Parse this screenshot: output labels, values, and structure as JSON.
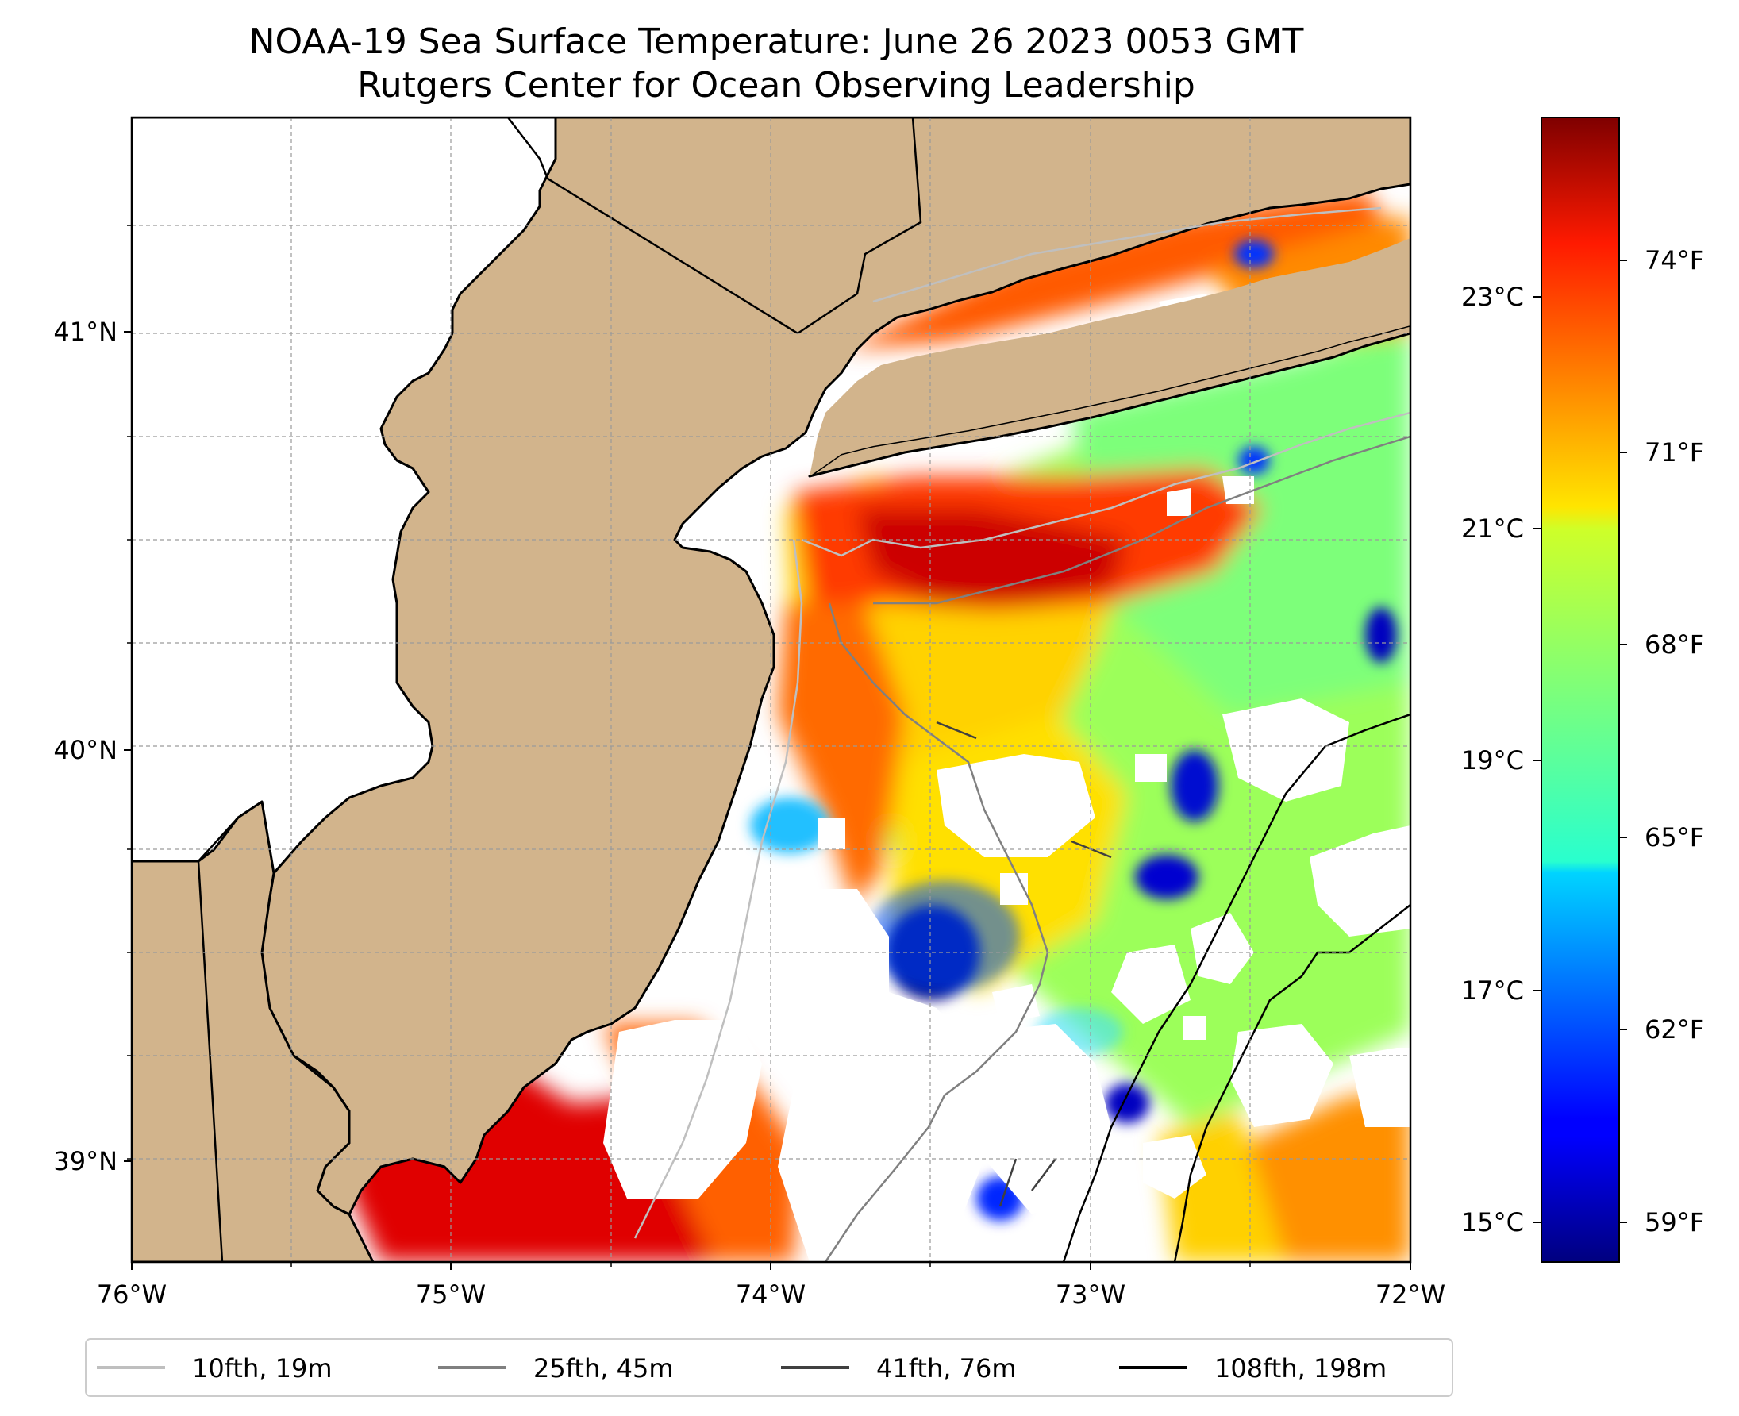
{
  "title": {
    "line1": "NOAA-19 Sea Surface Temperature: June 26 2023 0053 GMT",
    "line2": "Rutgers Center for Ocean Observing Leadership"
  },
  "map": {
    "lon_range": [
      -76,
      -72
    ],
    "lat_range": [
      38.75,
      41.5
    ],
    "lon_ticks": [
      {
        "value": -76,
        "label": "76°W"
      },
      {
        "value": -75,
        "label": "75°W"
      },
      {
        "value": -74,
        "label": "74°W"
      },
      {
        "value": -73,
        "label": "73°W"
      },
      {
        "value": -72,
        "label": "72°W"
      }
    ],
    "lat_ticks": [
      {
        "value": 41,
        "label": "41°N"
      },
      {
        "value": 40,
        "label": "40°N"
      },
      {
        "value": 39,
        "label": "39°N"
      }
    ],
    "land_color": "#d2b48c",
    "gridlines": true
  },
  "colorbar": {
    "cmap": "jet",
    "celsius_ticks": [
      {
        "value": 23,
        "label": "23°C"
      },
      {
        "value": 21,
        "label": "21°C"
      },
      {
        "value": 19,
        "label": "19°C"
      },
      {
        "value": 17,
        "label": "17°C"
      },
      {
        "value": 15,
        "label": "15°C"
      }
    ],
    "fahrenheit_ticks": [
      {
        "value": 74,
        "label": "74°F"
      },
      {
        "value": 71,
        "label": "71°F"
      },
      {
        "value": 68,
        "label": "68°F"
      },
      {
        "value": 65,
        "label": "65°F"
      },
      {
        "value": 62,
        "label": "62°F"
      },
      {
        "value": 59,
        "label": "59°F"
      }
    ],
    "range_f": [
      57.7,
      76.3
    ]
  },
  "legend": {
    "placement": "bottom",
    "items": [
      {
        "label": "10fth, 19m",
        "color": "#bfbfbf"
      },
      {
        "label": "25fth, 45m",
        "color": "#808080"
      },
      {
        "label": "41fth, 76m",
        "color": "#404040"
      },
      {
        "label": "108fth, 198m",
        "color": "#000000"
      }
    ]
  }
}
